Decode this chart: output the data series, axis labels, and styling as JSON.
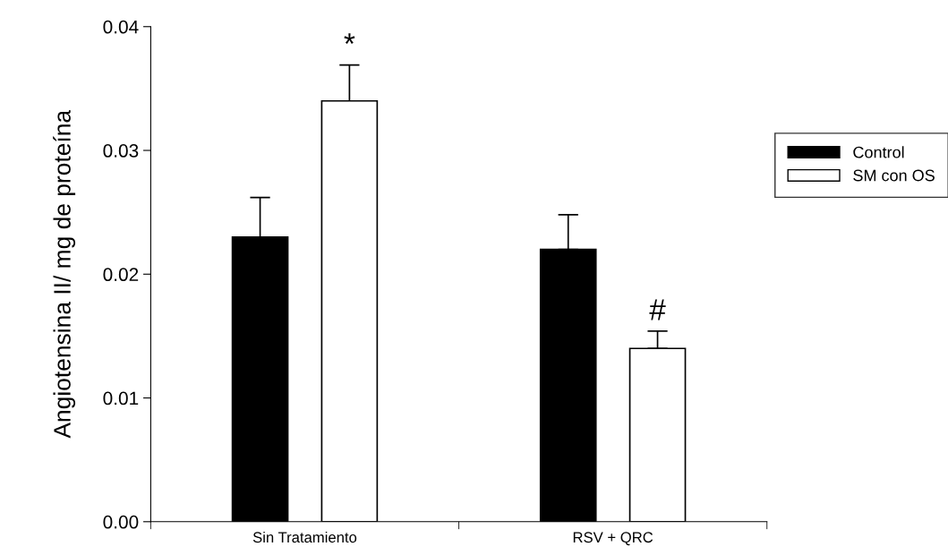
{
  "chart_data": {
    "type": "bar",
    "ylabel": "Angiotensina II/ mg de proteína",
    "categories": [
      "Sin Tratamiento",
      "RSV + QRC"
    ],
    "series": [
      {
        "name": "Control",
        "color": "#000000",
        "values": [
          0.023,
          0.022
        ],
        "errors": [
          0.0032,
          0.0028
        ]
      },
      {
        "name": "SM con OS",
        "color": "#ffffff",
        "values": [
          0.034,
          0.014
        ],
        "errors": [
          0.0029,
          0.0014
        ]
      }
    ],
    "ylim": [
      0,
      0.04
    ],
    "yticks": [
      {
        "value": 0,
        "label": "0.00"
      },
      {
        "value": 0.01,
        "label": "0.01"
      },
      {
        "value": 0.02,
        "label": "0.02"
      },
      {
        "value": 0.03,
        "label": "0.03"
      },
      {
        "value": 0.04,
        "label": "0.04"
      }
    ],
    "annotations": [
      "*",
      "#"
    ],
    "legend": "right",
    "grid": false
  }
}
